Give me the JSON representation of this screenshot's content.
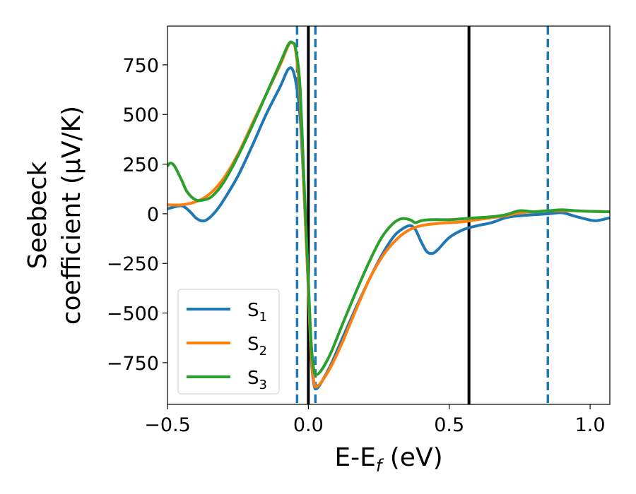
{
  "chart_data": {
    "type": "line",
    "xlabel": "E-E_f (eV)",
    "ylabel_line1": "Seebeck",
    "ylabel_line2": "coefficient  (μV/K)",
    "xlim": [
      -0.5,
      1.07
    ],
    "ylim": [
      -960,
      945
    ],
    "x_ticks": [
      -0.5,
      0.0,
      0.5,
      1.0
    ],
    "x_tick_labels": [
      "−0.5",
      "0.0",
      "0.5",
      "1.0"
    ],
    "y_ticks": [
      -750,
      -500,
      -250,
      0,
      250,
      500,
      750
    ],
    "y_tick_labels": [
      "−750",
      "−500",
      "−250",
      "0",
      "250",
      "500",
      "750"
    ],
    "grid": false,
    "legend_position": "lower-left",
    "vertical_lines": [
      {
        "x": 0.0,
        "style": "solid",
        "color": "#000000"
      },
      {
        "x": 0.57,
        "style": "solid",
        "color": "#000000"
      },
      {
        "x": -0.04,
        "style": "dashed",
        "color": "#1f77b4"
      },
      {
        "x": 0.025,
        "style": "dashed",
        "color": "#1f77b4"
      },
      {
        "x": 0.85,
        "style": "dashed",
        "color": "#1f77b4"
      }
    ],
    "series": [
      {
        "name": "S1",
        "legend_label": "S",
        "legend_sub": "1",
        "color": "#1f77b4",
        "points": [
          [
            -0.5,
            25
          ],
          [
            -0.45,
            40
          ],
          [
            -0.42,
            10
          ],
          [
            -0.4,
            -20
          ],
          [
            -0.38,
            -35
          ],
          [
            -0.36,
            -30
          ],
          [
            -0.33,
            10
          ],
          [
            -0.3,
            70
          ],
          [
            -0.25,
            190
          ],
          [
            -0.2,
            340
          ],
          [
            -0.15,
            500
          ],
          [
            -0.1,
            640
          ],
          [
            -0.07,
            730
          ],
          [
            -0.05,
            700
          ],
          [
            -0.03,
            500
          ],
          [
            -0.015,
            100
          ],
          [
            0.0,
            -380
          ],
          [
            0.01,
            -720
          ],
          [
            0.02,
            -860
          ],
          [
            0.03,
            -880
          ],
          [
            0.05,
            -840
          ],
          [
            0.08,
            -760
          ],
          [
            0.12,
            -630
          ],
          [
            0.17,
            -470
          ],
          [
            0.22,
            -320
          ],
          [
            0.26,
            -210
          ],
          [
            0.3,
            -120
          ],
          [
            0.33,
            -80
          ],
          [
            0.36,
            -60
          ],
          [
            0.38,
            -80
          ],
          [
            0.4,
            -140
          ],
          [
            0.42,
            -190
          ],
          [
            0.44,
            -200
          ],
          [
            0.46,
            -180
          ],
          [
            0.5,
            -120
          ],
          [
            0.55,
            -80
          ],
          [
            0.6,
            -60
          ],
          [
            0.65,
            -45
          ],
          [
            0.7,
            -20
          ],
          [
            0.75,
            -10
          ],
          [
            0.8,
            -5
          ],
          [
            0.85,
            0
          ],
          [
            0.9,
            5
          ],
          [
            0.94,
            -10
          ],
          [
            0.98,
            -25
          ],
          [
            1.02,
            -35
          ],
          [
            1.07,
            -20
          ]
        ]
      },
      {
        "name": "S2",
        "legend_label": "S",
        "legend_sub": "2",
        "color": "#ff7f0e",
        "points": [
          [
            -0.5,
            45
          ],
          [
            -0.45,
            45
          ],
          [
            -0.4,
            60
          ],
          [
            -0.35,
            100
          ],
          [
            -0.3,
            180
          ],
          [
            -0.25,
            300
          ],
          [
            -0.2,
            450
          ],
          [
            -0.15,
            600
          ],
          [
            -0.1,
            750
          ],
          [
            -0.07,
            850
          ],
          [
            -0.055,
            860
          ],
          [
            -0.045,
            820
          ],
          [
            -0.03,
            600
          ],
          [
            -0.015,
            100
          ],
          [
            0.0,
            -380
          ],
          [
            0.01,
            -700
          ],
          [
            0.02,
            -850
          ],
          [
            0.03,
            -870
          ],
          [
            0.05,
            -840
          ],
          [
            0.08,
            -770
          ],
          [
            0.12,
            -650
          ],
          [
            0.17,
            -480
          ],
          [
            0.22,
            -320
          ],
          [
            0.27,
            -200
          ],
          [
            0.32,
            -120
          ],
          [
            0.36,
            -80
          ],
          [
            0.4,
            -60
          ],
          [
            0.45,
            -50
          ],
          [
            0.5,
            -45
          ],
          [
            0.55,
            -40
          ],
          [
            0.6,
            -30
          ],
          [
            0.65,
            -20
          ],
          [
            0.7,
            -10
          ],
          [
            0.75,
            5
          ],
          [
            0.8,
            10
          ],
          [
            0.85,
            15
          ],
          [
            0.9,
            15
          ],
          [
            0.95,
            15
          ],
          [
            1.0,
            12
          ],
          [
            1.07,
            10
          ]
        ]
      },
      {
        "name": "S3",
        "legend_label": "S",
        "legend_sub": "3",
        "color": "#2ca02c",
        "points": [
          [
            -0.5,
            240
          ],
          [
            -0.49,
            255
          ],
          [
            -0.475,
            240
          ],
          [
            -0.45,
            170
          ],
          [
            -0.43,
            110
          ],
          [
            -0.4,
            70
          ],
          [
            -0.37,
            70
          ],
          [
            -0.34,
            90
          ],
          [
            -0.3,
            160
          ],
          [
            -0.25,
            290
          ],
          [
            -0.2,
            440
          ],
          [
            -0.15,
            600
          ],
          [
            -0.1,
            760
          ],
          [
            -0.07,
            855
          ],
          [
            -0.055,
            860
          ],
          [
            -0.045,
            830
          ],
          [
            -0.03,
            650
          ],
          [
            -0.015,
            150
          ],
          [
            0.0,
            -340
          ],
          [
            0.01,
            -650
          ],
          [
            0.02,
            -790
          ],
          [
            0.03,
            -810
          ],
          [
            0.05,
            -780
          ],
          [
            0.08,
            -700
          ],
          [
            0.12,
            -560
          ],
          [
            0.17,
            -390
          ],
          [
            0.22,
            -230
          ],
          [
            0.26,
            -120
          ],
          [
            0.3,
            -50
          ],
          [
            0.33,
            -25
          ],
          [
            0.36,
            -30
          ],
          [
            0.38,
            -45
          ],
          [
            0.4,
            -35
          ],
          [
            0.43,
            -30
          ],
          [
            0.47,
            -30
          ],
          [
            0.5,
            -30
          ],
          [
            0.55,
            -25
          ],
          [
            0.6,
            -20
          ],
          [
            0.65,
            -15
          ],
          [
            0.7,
            -5
          ],
          [
            0.75,
            15
          ],
          [
            0.8,
            10
          ],
          [
            0.85,
            15
          ],
          [
            0.9,
            20
          ],
          [
            0.95,
            15
          ],
          [
            1.0,
            12
          ],
          [
            1.07,
            10
          ]
        ]
      }
    ]
  }
}
